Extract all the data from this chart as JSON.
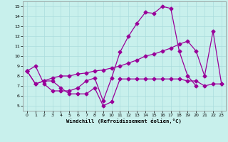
{
  "xlabel": "Windchill (Refroidissement éolien,°C)",
  "background_color": "#c8f0ec",
  "line_color": "#990099",
  "grid_color": "#aadddd",
  "x_ticks": [
    0,
    1,
    2,
    3,
    4,
    5,
    6,
    7,
    8,
    9,
    10,
    11,
    12,
    13,
    14,
    15,
    16,
    17,
    18,
    19,
    20,
    21,
    22,
    23
  ],
  "y_ticks": [
    5,
    6,
    7,
    8,
    9,
    10,
    11,
    12,
    13,
    14,
    15
  ],
  "ylim": [
    4.5,
    15.5
  ],
  "xlim": [
    -0.5,
    23.5
  ],
  "series1_x": [
    0,
    1,
    2,
    3,
    4,
    5,
    6,
    7,
    8,
    9,
    10,
    11,
    12,
    13,
    14,
    15,
    16,
    17,
    18,
    19,
    20
  ],
  "series1_y": [
    8.5,
    9.0,
    7.2,
    6.5,
    6.5,
    6.5,
    6.8,
    7.5,
    7.8,
    5.5,
    7.8,
    10.4,
    12.0,
    13.3,
    14.4,
    14.3,
    15.0,
    14.8,
    10.5,
    8.0,
    7.0
  ],
  "series2_x": [
    0,
    1,
    2,
    3,
    4,
    5,
    6,
    7,
    8,
    9,
    10,
    11,
    12,
    13,
    14,
    15,
    16,
    17,
    18,
    19,
    20,
    21,
    22,
    23
  ],
  "series2_y": [
    8.5,
    7.2,
    7.5,
    7.5,
    6.8,
    6.2,
    6.2,
    6.2,
    6.8,
    5.0,
    5.4,
    7.7,
    7.7,
    7.7,
    7.7,
    7.7,
    7.7,
    7.7,
    7.7,
    7.5,
    7.5,
    7.0,
    7.2,
    7.2
  ],
  "series3_x": [
    0,
    1,
    2,
    3,
    4,
    5,
    6,
    7,
    8,
    9,
    10,
    11,
    12,
    13,
    14,
    15,
    16,
    17,
    18,
    19,
    20,
    21,
    22,
    23
  ],
  "series3_y": [
    8.5,
    7.2,
    7.5,
    7.8,
    8.0,
    8.0,
    8.2,
    8.3,
    8.5,
    8.6,
    8.8,
    9.0,
    9.3,
    9.6,
    10.0,
    10.2,
    10.5,
    10.8,
    11.2,
    11.5,
    10.5,
    8.0,
    12.5,
    7.2
  ]
}
